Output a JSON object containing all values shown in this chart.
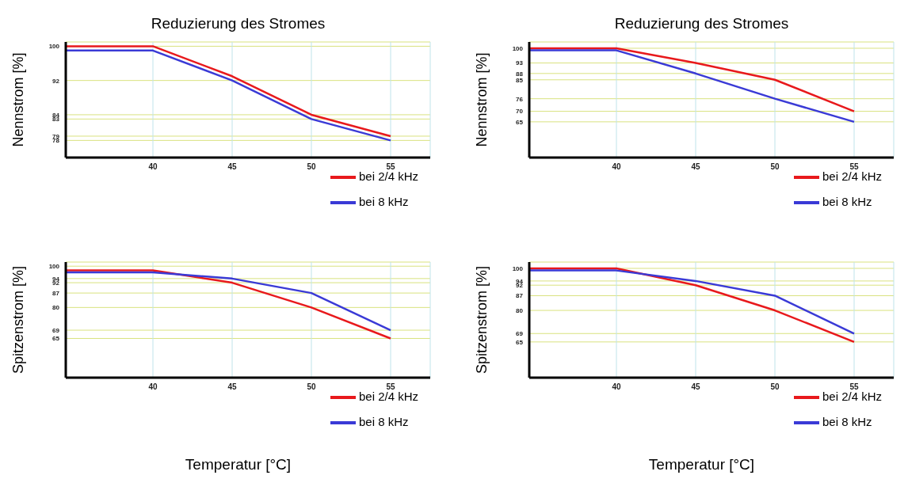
{
  "chart_data": [
    {
      "type": "line",
      "title": "Reduzierung des Stromes",
      "ylabel": "Nennstrom [%]",
      "x": [
        34.5,
        40,
        45,
        50,
        55
      ],
      "xlim": [
        34.5,
        57.5
      ],
      "xticks": [
        40,
        45,
        50,
        55
      ],
      "ylim": [
        74,
        101
      ],
      "yticks": [
        100,
        92,
        84,
        83,
        79,
        78
      ],
      "grid": true,
      "legend": "bottom right",
      "series": [
        {
          "name": "bei 2/4 kHz",
          "color": "#e8191c",
          "values": [
            100,
            100,
            93,
            84,
            79
          ]
        },
        {
          "name": "bei 8 kHz",
          "color": "#3a3ad6",
          "values": [
            99,
            99,
            92,
            83,
            78
          ]
        }
      ]
    },
    {
      "type": "line",
      "title": "Reduzierung des Stromes",
      "ylabel": "Nennstrom [%]",
      "x": [
        34.5,
        40,
        45,
        50,
        55
      ],
      "xlim": [
        34.5,
        57.5
      ],
      "xticks": [
        40,
        45,
        50,
        55
      ],
      "ylim": [
        48,
        103
      ],
      "yticks": [
        100,
        93,
        88,
        85,
        76,
        70,
        65
      ],
      "grid": true,
      "legend": "bottom right",
      "series": [
        {
          "name": "bei 2/4 kHz",
          "color": "#e8191c",
          "values": [
            100,
            100,
            93,
            85,
            70
          ]
        },
        {
          "name": "bei 8 kHz",
          "color": "#3a3ad6",
          "values": [
            99,
            99,
            88,
            76,
            65
          ]
        }
      ]
    },
    {
      "type": "line",
      "ylabel": "Spitzenstrom [%]",
      "xlabel": "Temperatur [°C]",
      "x": [
        34.5,
        40,
        45,
        50,
        55
      ],
      "xlim": [
        34.5,
        57.5
      ],
      "xticks": [
        40,
        45,
        50,
        55
      ],
      "ylim": [
        46,
        102
      ],
      "yticks": [
        100,
        94,
        92,
        87,
        80,
        69,
        65
      ],
      "grid": true,
      "legend": "bottom right",
      "series": [
        {
          "name": "bei 2/4 kHz",
          "color": "#e8191c",
          "values": [
            98,
            98,
            92,
            80,
            65
          ]
        },
        {
          "name": "bei 8 kHz",
          "color": "#3a3ad6",
          "values": [
            97,
            97,
            94,
            87,
            69
          ]
        }
      ]
    },
    {
      "type": "line",
      "ylabel": "Spitzenstrom [%]",
      "xlabel": "Temperatur [°C]",
      "x": [
        34.5,
        40,
        45,
        50,
        55
      ],
      "xlim": [
        34.5,
        57.5
      ],
      "xticks": [
        40,
        45,
        50,
        55
      ],
      "ylim": [
        48,
        103
      ],
      "yticks": [
        100,
        94,
        92,
        87,
        80,
        69,
        65
      ],
      "grid": true,
      "legend": "bottom right",
      "series": [
        {
          "name": "bei 2/4 kHz",
          "color": "#e8191c",
          "values": [
            100,
            100,
            92,
            80,
            65
          ]
        },
        {
          "name": "bei 8 kHz",
          "color": "#3a3ad6",
          "values": [
            99,
            99,
            94,
            87,
            69
          ]
        }
      ]
    }
  ]
}
